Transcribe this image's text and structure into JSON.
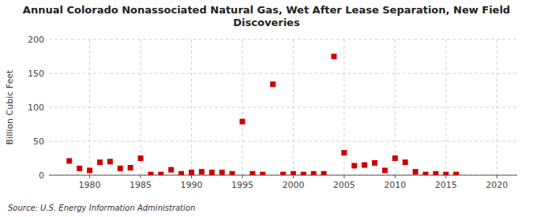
{
  "chart_data": {
    "type": "scatter",
    "title": "Annual Colorado Nonassociated Natural Gas, Wet After Lease Separation, New Field\nDiscoveries",
    "ylabel": "Billion Cubic Feet",
    "annotations": [
      "Source: U.S. Energy Information Administration"
    ],
    "x": [
      1978,
      1979,
      1980,
      1981,
      1982,
      1983,
      1984,
      1985,
      1986,
      1987,
      1988,
      1989,
      1990,
      1991,
      1992,
      1993,
      1994,
      1995,
      1996,
      1997,
      1998,
      1999,
      2000,
      2001,
      2002,
      2003,
      2004,
      2005,
      2006,
      2007,
      2008,
      2009,
      2010,
      2011,
      2012,
      2013,
      2014,
      2015,
      2016
    ],
    "values": [
      21,
      10,
      7,
      19,
      20,
      10,
      11,
      25,
      1,
      1,
      8,
      2,
      4,
      5,
      4,
      4,
      2,
      79,
      2,
      1,
      134,
      1,
      2,
      1,
      2,
      2,
      175,
      33,
      14,
      15,
      18,
      7,
      25,
      19,
      5,
      1,
      2,
      1,
      1
    ],
    "color": "#cc0000",
    "marker": "square",
    "xlim": [
      1976,
      2022
    ],
    "ylim": [
      0,
      200
    ],
    "xticks": [
      1980,
      1985,
      1990,
      1995,
      2000,
      2005,
      2010,
      2015,
      2020
    ],
    "yticks": [
      0,
      50,
      100,
      150,
      200
    ],
    "grid": true
  }
}
